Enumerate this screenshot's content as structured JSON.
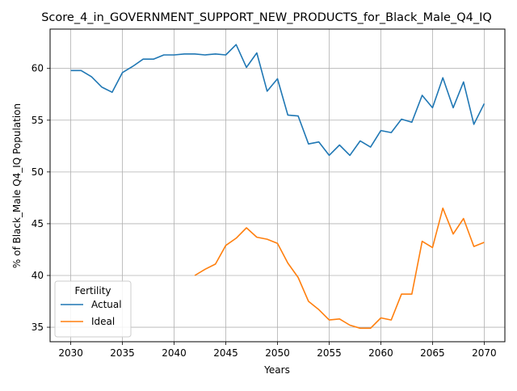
{
  "chart_data": {
    "type": "line",
    "title": "Score_4_in_GOVERNMENT_SUPPORT_NEW_PRODUCTS_for_Black_Male_Q4_IQ",
    "xlabel": "Years",
    "ylabel": "% of Black_Male Q4_IQ Population",
    "xlim": [
      2028,
      2072
    ],
    "ylim": [
      33.6,
      63.8
    ],
    "xticks": [
      2030,
      2035,
      2040,
      2045,
      2050,
      2055,
      2060,
      2065,
      2070
    ],
    "yticks": [
      35,
      40,
      45,
      50,
      55,
      60
    ],
    "grid": true,
    "legend": {
      "title": "Fertility",
      "placement": "lower-left"
    },
    "series": [
      {
        "name": "Actual",
        "color": "#1f77b4",
        "x": [
          2030,
          2031,
          2032,
          2033,
          2034,
          2035,
          2036,
          2037,
          2038,
          2039,
          2040,
          2041,
          2042,
          2043,
          2044,
          2045,
          2046,
          2047,
          2048,
          2049,
          2050,
          2051,
          2052,
          2053,
          2054,
          2055,
          2056,
          2057,
          2058,
          2059,
          2060,
          2061,
          2062,
          2063,
          2064,
          2065,
          2066,
          2067,
          2068,
          2069,
          2070
        ],
        "values": [
          59.8,
          59.8,
          59.2,
          58.2,
          57.7,
          59.6,
          60.2,
          60.9,
          60.9,
          61.3,
          61.3,
          61.4,
          61.4,
          61.3,
          61.4,
          61.3,
          62.3,
          60.1,
          61.5,
          57.8,
          59.0,
          55.5,
          55.4,
          52.7,
          52.9,
          51.6,
          52.6,
          51.6,
          53.0,
          52.4,
          54.0,
          53.8,
          55.1,
          54.8,
          57.4,
          56.2,
          59.1,
          56.2,
          58.7,
          54.6,
          56.6
        ]
      },
      {
        "name": "Ideal",
        "color": "#ff7f0e",
        "x": [
          2042,
          2043,
          2044,
          2045,
          2046,
          2047,
          2048,
          2049,
          2050,
          2051,
          2052,
          2053,
          2054,
          2055,
          2056,
          2057,
          2058,
          2059,
          2060,
          2061,
          2062,
          2063,
          2064,
          2065,
          2066,
          2067,
          2068,
          2069,
          2070
        ],
        "values": [
          40.0,
          40.6,
          41.1,
          42.9,
          43.6,
          44.6,
          43.7,
          43.5,
          43.1,
          41.2,
          39.8,
          37.5,
          36.7,
          35.7,
          35.8,
          35.2,
          34.9,
          34.9,
          35.9,
          35.7,
          38.2,
          38.2,
          43.3,
          42.7,
          46.5,
          44.0,
          45.5,
          42.8,
          43.2
        ]
      }
    ]
  }
}
